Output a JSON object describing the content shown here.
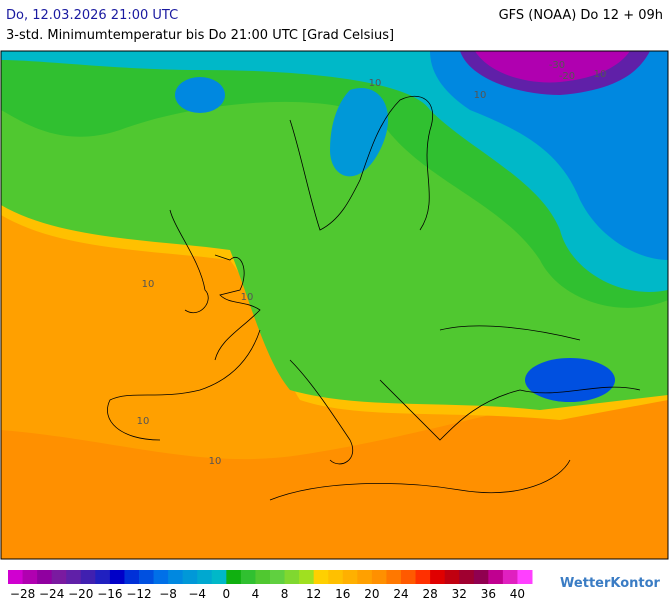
{
  "header": {
    "date": "Do, 12.03.2026 21:00 UTC",
    "model": "GFS (NOAA) Do 12 + 09h",
    "subtitle": "3-std. Minimumtemperatur bis Do 21:00 UTC [Grad Celsius]"
  },
  "map": {
    "contour_labels": [
      "-30",
      "-20",
      "10",
      "10",
      "10",
      "10",
      "10",
      "10",
      "10"
    ]
  },
  "legend": {
    "range": [
      -30,
      42
    ],
    "colors": [
      "#d000d0",
      "#b000b0",
      "#9000a0",
      "#7a1aa0",
      "#6020a8",
      "#4020b0",
      "#2020c0",
      "#0000c8",
      "#0030d8",
      "#0050e0",
      "#0070e8",
      "#0088e0",
      "#0098d8",
      "#00a8d0",
      "#00b8c8",
      "#10b010",
      "#30c030",
      "#50c830",
      "#60d040",
      "#80d830",
      "#a0e020",
      "#ffd000",
      "#ffc000",
      "#ffb000",
      "#ffa000",
      "#ff9000",
      "#ff7800",
      "#ff5a00",
      "#ff3000",
      "#e00000",
      "#c00010",
      "#a00030",
      "#900050",
      "#c00090",
      "#e020c0",
      "#ff40ff"
    ],
    "ticks": [
      {
        "value": -28,
        "label": "−28"
      },
      {
        "value": -24,
        "label": "−24"
      },
      {
        "value": -20,
        "label": "−20"
      },
      {
        "value": -16,
        "label": "−16"
      },
      {
        "value": -12,
        "label": "−12"
      },
      {
        "value": -8,
        "label": "−8"
      },
      {
        "value": -4,
        "label": "−4"
      },
      0,
      4,
      8,
      12,
      16,
      20,
      24,
      28,
      32,
      36,
      40
    ]
  },
  "logo": "WetterKontor"
}
